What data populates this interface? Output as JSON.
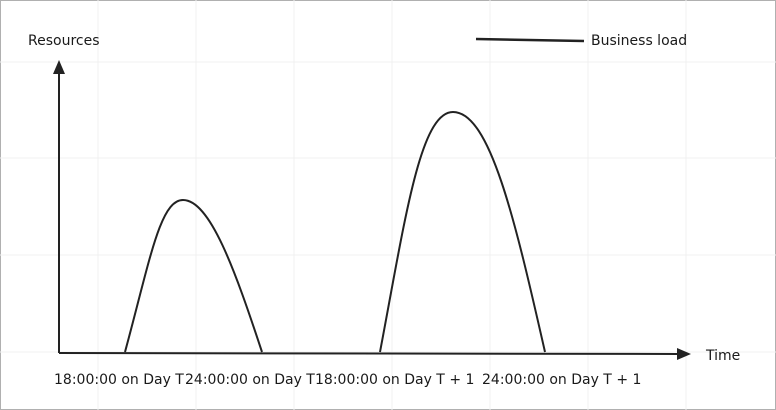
{
  "axes": {
    "y_label": "Resources",
    "x_label": "Time"
  },
  "legend": {
    "label": "Business load"
  },
  "time_labels": [
    "18:00:00 on Day T",
    "24:00:00 on Day T",
    "18:00:00 on Day T + 1",
    "24:00:00 on Day T + 1"
  ]
}
